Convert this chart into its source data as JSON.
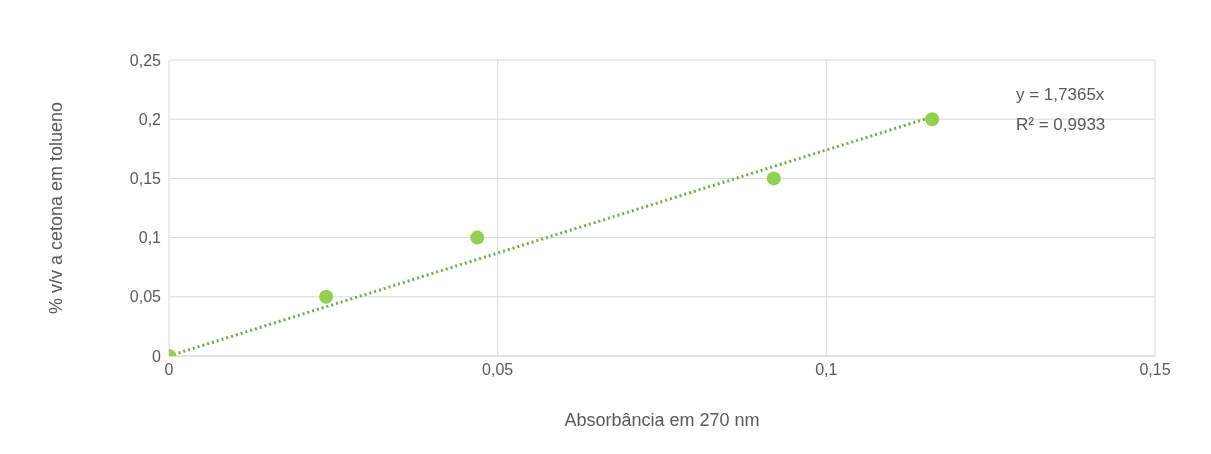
{
  "chart_data": {
    "type": "scatter",
    "xlabel": "Absorbância em 270 nm",
    "ylabel": "% v/v a cetona em tolueno",
    "series": [
      {
        "color": "#92d050",
        "x": [
          0,
          0.0239,
          0.0469,
          0.092,
          0.1161
        ],
        "values": [
          0,
          0.05,
          0.1,
          0.15,
          0.2
        ],
        "marker": "circle"
      },
      {
        "type": "line",
        "color": "#70ad47",
        "x": [
          0,
          0.1161
        ],
        "values": [
          0,
          0.202
        ],
        "line_style": "dotted",
        "marker": "none"
      }
    ],
    "xlim": [
      0,
      0.15
    ],
    "xticks": [
      0,
      {
        "value": 0.05,
        "label": "0,05"
      },
      {
        "value": 0.1,
        "label": "0,1"
      },
      {
        "value": 0.15,
        "label": "0,15"
      }
    ],
    "ylim": [
      0,
      0.25
    ],
    "yticks": [
      0,
      {
        "value": 0.05,
        "label": "0,05"
      },
      {
        "value": 0.1,
        "label": "0,1"
      },
      {
        "value": 0.15,
        "label": "0,15"
      },
      {
        "value": 0.2,
        "label": "0,2"
      },
      {
        "value": 0.25,
        "label": "0,25"
      }
    ],
    "grid": true,
    "annotations": [
      "y = 1,7365x",
      "R² = 0,9933"
    ]
  }
}
